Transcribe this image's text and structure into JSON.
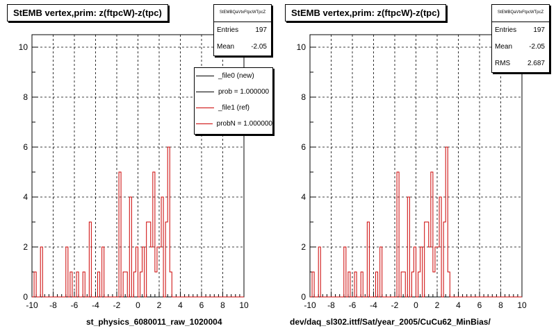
{
  "footer": "",
  "chart_data": [
    {
      "type": "histogram",
      "title": "StEMB  vertex,prim: z(ftpcW)-z(tpc)",
      "xlabel": "st_physics_6080011_raw_1020004",
      "xlim": [
        -10,
        10
      ],
      "ylim": [
        0,
        10.5
      ],
      "xticks": [
        "-10",
        "-8",
        "-6",
        "-4",
        "-2",
        "0",
        "2",
        "4",
        "6",
        "8",
        "10"
      ],
      "yticks": [
        "0",
        "2",
        "4",
        "6",
        "8",
        "10"
      ],
      "grid": true,
      "bin_edges": {
        "start": -10,
        "width": 0.2
      },
      "series": [
        {
          "name": "_file0 (new)",
          "color": "#000000"
        },
        {
          "name": "_file1 (ref)",
          "color": "#cc0000",
          "values": [
            0,
            1,
            0,
            0,
            2,
            0,
            0,
            0,
            0,
            0,
            0,
            0,
            0,
            0,
            0,
            0,
            2,
            0,
            1,
            0,
            0,
            1,
            0,
            0,
            1,
            0,
            0,
            3,
            0,
            0,
            0,
            1,
            0,
            2,
            0,
            0,
            0,
            0,
            0,
            0,
            0,
            5,
            0,
            1,
            1,
            0,
            4,
            0,
            1,
            2,
            0,
            1,
            2,
            0,
            3,
            3,
            2,
            5,
            1,
            2,
            2,
            4,
            0,
            3,
            6,
            1,
            0,
            0,
            0,
            0,
            0,
            0,
            0,
            0,
            0,
            0,
            0,
            0,
            0,
            0,
            0,
            0,
            0,
            0,
            0,
            0,
            0,
            0,
            0,
            0,
            0,
            0,
            0,
            0,
            0,
            0,
            0,
            0,
            0,
            0
          ]
        }
      ],
      "stats": {
        "name": "StEMBQaVtxFtpcWTpcZ",
        "entries": "197",
        "mean": "-2.05"
      },
      "legend": [
        "_file0 (new)",
        "prob = 1.000000",
        "_file1 (ref)",
        "probN = 1.000000"
      ]
    },
    {
      "type": "histogram",
      "title": "StEMB  vertex,prim: z(ftpcW)-z(tpc)",
      "xlabel": "dev/daq_sl302.ittf/Sat/year_2005/CuCu62_MinBias/",
      "xlim": [
        -10,
        10
      ],
      "ylim": [
        0,
        10.5
      ],
      "xticks": [
        "-10",
        "-8",
        "-6",
        "-4",
        "-2",
        "0",
        "2",
        "4",
        "6",
        "8",
        "10"
      ],
      "yticks": [
        "0",
        "2",
        "4",
        "6",
        "8",
        "10"
      ],
      "grid": true,
      "bin_edges": {
        "start": -10,
        "width": 0.2
      },
      "series": [
        {
          "name": "",
          "color": "#cc0000",
          "values": [
            0,
            1,
            0,
            0,
            2,
            0,
            0,
            0,
            0,
            0,
            0,
            0,
            0,
            0,
            0,
            0,
            2,
            0,
            1,
            0,
            0,
            1,
            0,
            0,
            1,
            0,
            0,
            3,
            0,
            0,
            0,
            1,
            0,
            2,
            0,
            0,
            0,
            0,
            0,
            0,
            0,
            5,
            0,
            1,
            1,
            0,
            4,
            0,
            1,
            2,
            0,
            1,
            2,
            0,
            3,
            3,
            2,
            5,
            1,
            2,
            2,
            4,
            0,
            3,
            6,
            1,
            0,
            0,
            0,
            0,
            0,
            0,
            0,
            0,
            0,
            0,
            0,
            0,
            0,
            0,
            0,
            0,
            0,
            0,
            0,
            0,
            0,
            0,
            0,
            0,
            0,
            0,
            0,
            0,
            0,
            0,
            0,
            0,
            0,
            0
          ]
        }
      ],
      "stats": {
        "name": "StEMBQaVtxFtpcWTpcZ",
        "entries": "197",
        "mean": "-2.05",
        "rms": "2.687"
      }
    }
  ]
}
